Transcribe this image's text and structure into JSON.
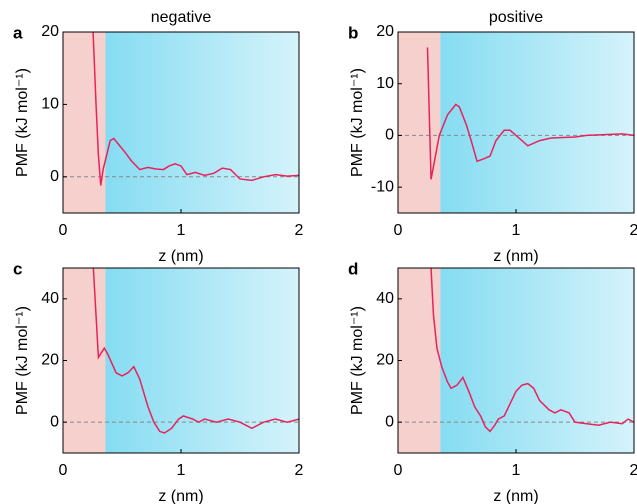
{
  "chart_data": [
    {
      "type": "line",
      "panel": "a",
      "title": "negative",
      "xlabel": "z (nm)",
      "ylabel": "PMF (kJ mol⁻¹)",
      "x": [
        0.25,
        0.28,
        0.3,
        0.32,
        0.34,
        0.37,
        0.4,
        0.43,
        0.47,
        0.52,
        0.58,
        0.65,
        0.72,
        0.78,
        0.85,
        0.9,
        0.95,
        1.0,
        1.05,
        1.12,
        1.2,
        1.28,
        1.35,
        1.42,
        1.5,
        1.6,
        1.7,
        1.8,
        1.9,
        2.0
      ],
      "values": [
        22,
        10,
        3,
        -1.2,
        1,
        3,
        5,
        5.3,
        4.5,
        3.5,
        2.2,
        1,
        1.3,
        1.1,
        1,
        1.5,
        1.8,
        1.5,
        0.3,
        0.6,
        0.2,
        0.5,
        1.2,
        1,
        -0.3,
        -0.5,
        0,
        0.3,
        0.1,
        0.2
      ],
      "color": "#e8225c",
      "xlim": [
        0,
        2
      ],
      "ylim": [
        -5,
        20
      ],
      "xticks": [
        0,
        1,
        2
      ],
      "yticks": [
        0,
        10,
        20
      ],
      "regions": [
        {
          "x": [
            0,
            0.36
          ],
          "color": "#f6d0cd"
        },
        {
          "x": [
            0.36,
            2
          ],
          "color": "#86dcf2",
          "color_to": "#d5f3fb"
        }
      ],
      "hline": {
        "y": 0,
        "color": "#888888"
      }
    },
    {
      "type": "line",
      "panel": "b",
      "title": "positive",
      "xlabel": "z (nm)",
      "ylabel": "PMF (kJ mol⁻¹)",
      "x": [
        0.25,
        0.28,
        0.35,
        0.42,
        0.49,
        0.52,
        0.58,
        0.62,
        0.67,
        0.73,
        0.78,
        0.83,
        0.9,
        0.95,
        1.0,
        1.05,
        1.1,
        1.2,
        1.3,
        1.5,
        1.6,
        1.8,
        1.9,
        2.0
      ],
      "values": [
        17,
        -8.5,
        0,
        4,
        6,
        5.5,
        2,
        -1,
        -5,
        -4.5,
        -4,
        -1,
        1,
        1,
        0,
        -1,
        -2,
        -1,
        -0.5,
        -0.3,
        0,
        0.2,
        0.3,
        0
      ],
      "color": "#e8225c",
      "xlim": [
        0,
        2
      ],
      "ylim": [
        -15,
        20
      ],
      "xticks": [
        0,
        1,
        2
      ],
      "yticks": [
        -10,
        0,
        10,
        20
      ],
      "regions": [
        {
          "x": [
            0,
            0.36
          ],
          "color": "#f6d0cd"
        },
        {
          "x": [
            0.36,
            2
          ],
          "color": "#86dcf2",
          "color_to": "#d5f3fb"
        }
      ],
      "hline": {
        "y": 0,
        "color": "#888888"
      }
    },
    {
      "type": "line",
      "panel": "c",
      "xlabel": "z (nm)",
      "ylabel": "PMF (kJ mol⁻¹)",
      "x": [
        0.25,
        0.3,
        0.35,
        0.38,
        0.45,
        0.5,
        0.55,
        0.6,
        0.65,
        0.72,
        0.77,
        0.82,
        0.86,
        0.92,
        0.98,
        1.02,
        1.1,
        1.15,
        1.2,
        1.3,
        1.4,
        1.5,
        1.6,
        1.7,
        1.8,
        1.9,
        2.0
      ],
      "values": [
        55,
        21,
        24,
        22,
        16,
        15,
        16,
        18,
        14,
        5,
        0,
        -3,
        -3.5,
        -2,
        1,
        2,
        1,
        0,
        1,
        0,
        1,
        0,
        -2,
        0,
        1,
        0,
        1
      ],
      "color": "#e8225c",
      "xlim": [
        0,
        2
      ],
      "ylim": [
        -10,
        50
      ],
      "xticks": [
        0,
        1,
        2
      ],
      "yticks": [
        0,
        20,
        40
      ],
      "regions": [
        {
          "x": [
            0,
            0.36
          ],
          "color": "#f6d0cd"
        },
        {
          "x": [
            0.36,
            2
          ],
          "color": "#86dcf2",
          "color_to": "#d5f3fb"
        }
      ],
      "hline": {
        "y": 0,
        "color": "#888888"
      }
    },
    {
      "type": "line",
      "panel": "d",
      "xlabel": "z (nm)",
      "ylabel": "PMF (kJ mol⁻¹)",
      "x": [
        0.28,
        0.3,
        0.33,
        0.37,
        0.42,
        0.45,
        0.5,
        0.55,
        0.6,
        0.65,
        0.7,
        0.74,
        0.78,
        0.82,
        0.85,
        0.9,
        0.95,
        1.0,
        1.05,
        1.1,
        1.15,
        1.2,
        1.28,
        1.33,
        1.38,
        1.45,
        1.5,
        1.6,
        1.7,
        1.8,
        1.9,
        1.95,
        2.0
      ],
      "values": [
        50,
        35,
        24,
        18,
        13,
        11,
        12,
        14.5,
        10,
        5,
        2,
        -1.5,
        -3,
        -1,
        1,
        2,
        6,
        10,
        12,
        12.5,
        11,
        7,
        4,
        3,
        4,
        3,
        0,
        -0.5,
        -1,
        0,
        -0.5,
        1,
        0
      ],
      "color": "#e8225c",
      "xlim": [
        0,
        2
      ],
      "ylim": [
        -10,
        50
      ],
      "xticks": [
        0,
        1,
        2
      ],
      "yticks": [
        0,
        20,
        40
      ],
      "regions": [
        {
          "x": [
            0,
            0.36
          ],
          "color": "#f6d0cd"
        },
        {
          "x": [
            0.36,
            2
          ],
          "color": "#86dcf2",
          "color_to": "#d5f3fb"
        }
      ],
      "hline": {
        "y": 0,
        "color": "#888888"
      }
    }
  ]
}
